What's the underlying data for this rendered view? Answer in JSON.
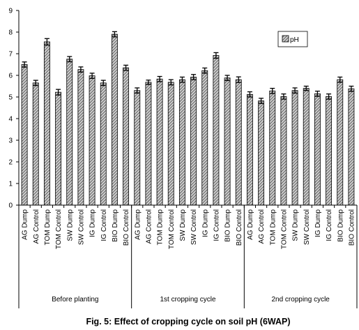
{
  "chart_data": {
    "type": "bar",
    "title": "Fig. 5: Effect of cropping cycle on soil pH (6WAP)",
    "ylim": [
      0,
      9
    ],
    "yticks": [
      "0",
      "1",
      "2",
      "3",
      "4",
      "5",
      "6",
      "7",
      "8",
      "9"
    ],
    "legend": {
      "label": "pH",
      "position": "top-right"
    },
    "bar_color": "#6b6b6b",
    "error_bar_color": "#000000",
    "groups": [
      {
        "label": "Before planting",
        "size": 10
      },
      {
        "label": "1st cropping cycle",
        "size": 10
      },
      {
        "label": "2nd cropping cycle",
        "size": 10
      }
    ],
    "categories": [
      "AG Dump",
      "AG Control",
      "TOM Dump",
      "TOM Control",
      "SW Dump",
      "SW Control",
      "IG Dump",
      "IG Control",
      "BIO Dump",
      "BIO Control",
      "AG Dump",
      "AG Control",
      "TOM Dump",
      "TOM Control",
      "SW Dump",
      "SW Control",
      "IG Dump",
      "IG Control",
      "BIO Dump",
      "BIO Control",
      "AG Dump",
      "AG Control",
      "TOM Dump",
      "TOM Control",
      "SW Dump",
      "SW Control",
      "IG Dump",
      "IG Control",
      "BIO Dump",
      "BIO Control"
    ],
    "series": [
      {
        "name": "pH",
        "values": [
          6.5,
          5.65,
          7.55,
          5.22,
          6.75,
          6.27,
          5.98,
          5.65,
          7.9,
          6.35,
          5.3,
          5.68,
          5.83,
          5.68,
          5.8,
          5.92,
          6.22,
          6.92,
          5.88,
          5.8,
          5.12,
          4.82,
          5.28,
          5.02,
          5.3,
          5.4,
          5.15,
          5.02,
          5.8,
          5.38
        ],
        "errors": [
          0.12,
          0.12,
          0.15,
          0.13,
          0.12,
          0.12,
          0.12,
          0.12,
          0.12,
          0.12,
          0.12,
          0.1,
          0.12,
          0.12,
          0.12,
          0.12,
          0.12,
          0.13,
          0.12,
          0.13,
          0.12,
          0.12,
          0.12,
          0.12,
          0.12,
          0.1,
          0.12,
          0.12,
          0.12,
          0.12
        ]
      }
    ]
  }
}
